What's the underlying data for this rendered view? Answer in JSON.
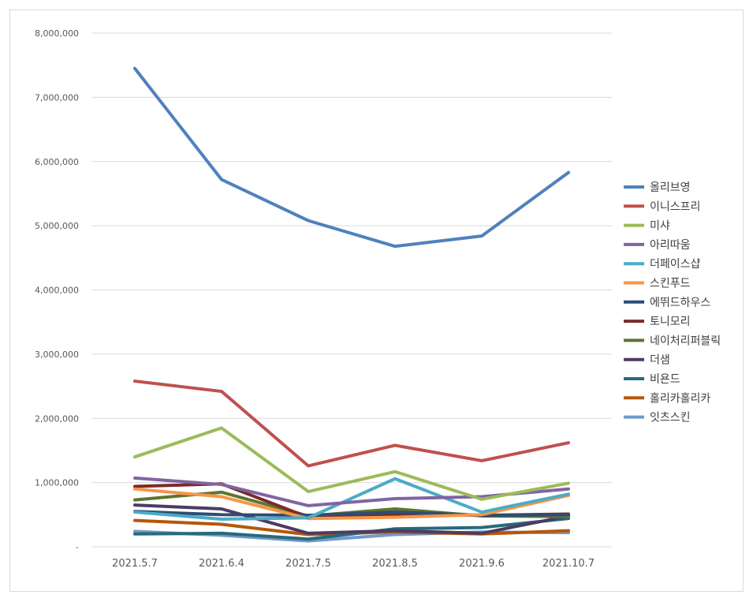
{
  "chart_data": {
    "type": "line",
    "title": "",
    "xlabel": "",
    "ylabel": "",
    "categories": [
      "2021.5.7",
      "2021.6.4",
      "2021.7.5",
      "2021.8.5",
      "2021.9.6",
      "2021.10.7"
    ],
    "ylim": [
      0,
      8000000
    ],
    "yticks": [
      0,
      1000000,
      2000000,
      3000000,
      4000000,
      5000000,
      6000000,
      7000000,
      8000000
    ],
    "ytick_labels": [
      "-",
      "1,000,000",
      "2,000,000",
      "3,000,000",
      "4,000,000",
      "5,000,000",
      "6,000,000",
      "7,000,000",
      "8,000,000"
    ],
    "grid": true,
    "legend_position": "right",
    "series": [
      {
        "name": "올리브영",
        "color": "#4f81bd",
        "values": [
          7450000,
          5720000,
          5080000,
          4680000,
          4840000,
          5830000
        ]
      },
      {
        "name": "이니스프리",
        "color": "#c0504d",
        "values": [
          2580000,
          2420000,
          1260000,
          1580000,
          1340000,
          1620000
        ]
      },
      {
        "name": "미샤",
        "color": "#9bbb59",
        "values": [
          1400000,
          1850000,
          860000,
          1170000,
          740000,
          990000
        ]
      },
      {
        "name": "아리따움",
        "color": "#8064a2",
        "values": [
          1070000,
          970000,
          640000,
          750000,
          780000,
          900000
        ]
      },
      {
        "name": "더페이스샵",
        "color": "#4bacc6",
        "values": [
          540000,
          430000,
          450000,
          1060000,
          540000,
          820000
        ]
      },
      {
        "name": "스킨푸드",
        "color": "#f79646",
        "values": [
          900000,
          780000,
          440000,
          460000,
          500000,
          800000
        ]
      },
      {
        "name": "에뛰드하우스",
        "color": "#2c4d75",
        "values": [
          550000,
          500000,
          490000,
          540000,
          490000,
          500000
        ]
      },
      {
        "name": "토니모리",
        "color": "#772c2a",
        "values": [
          940000,
          980000,
          460000,
          500000,
          490000,
          510000
        ]
      },
      {
        "name": "네이처리퍼블릭",
        "color": "#5f7530",
        "values": [
          730000,
          850000,
          480000,
          590000,
          480000,
          470000
        ]
      },
      {
        "name": "더샘",
        "color": "#4d3b62",
        "values": [
          650000,
          590000,
          210000,
          250000,
          210000,
          480000
        ]
      },
      {
        "name": "비욘드",
        "color": "#276a7c",
        "values": [
          200000,
          210000,
          120000,
          280000,
          300000,
          440000
        ]
      },
      {
        "name": "홀리카홀리카",
        "color": "#b65708",
        "values": [
          410000,
          350000,
          190000,
          230000,
          200000,
          250000
        ]
      },
      {
        "name": "잇츠스킨",
        "color": "#729aca",
        "values": [
          240000,
          180000,
          90000,
          190000,
          230000,
          220000
        ]
      }
    ]
  }
}
